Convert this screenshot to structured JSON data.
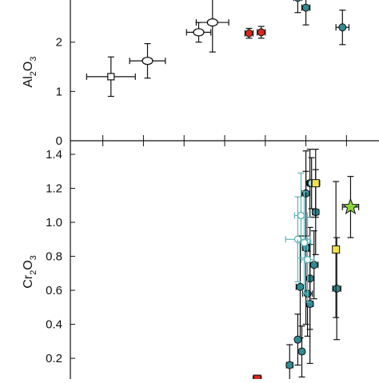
{
  "chart_data": [
    {
      "type": "scatter",
      "ylabel_main": "Al",
      "ylabel_sub": [
        "2",
        "3"
      ],
      "ylabel_mid": "O",
      "ylim": [
        0,
        3.05
      ],
      "yticks": [
        {
          "value": 0,
          "label": "0"
        },
        {
          "value": 1,
          "label": "1"
        },
        {
          "value": 2,
          "label": "2"
        }
      ],
      "series": [
        {
          "marker": "square-open",
          "color": "#ffffff",
          "points": [
            {
              "x": 0.1,
              "y": 1.3,
              "xerr": 0.3,
              "yerr": 0.4
            }
          ]
        },
        {
          "marker": "ellipse-open",
          "color": "#ffffff",
          "points": [
            {
              "x": 0.55,
              "y": 1.62,
              "xerr": 0.22,
              "yerr": 0.35
            },
            {
              "x": 1.18,
              "y": 2.2,
              "xerr": 0.15,
              "yerr": 0.2
            },
            {
              "x": 1.35,
              "y": 2.4,
              "xerr": 0.2,
              "yerr": 0.6
            }
          ]
        },
        {
          "marker": "circle",
          "color": "#d9261c",
          "points": [
            {
              "x": 1.8,
              "y": 2.18,
              "xerr": 0.05,
              "yerr": 0.1
            },
            {
              "x": 1.95,
              "y": 2.2,
              "xerr": 0.05,
              "yerr": 0.12
            }
          ]
        },
        {
          "marker": "circle",
          "color": "#2e8b93",
          "points": [
            {
              "x": 2.4,
              "y": 2.9,
              "xerr": 0.05,
              "yerr": 0.3
            },
            {
              "x": 2.5,
              "y": 2.7,
              "xerr": 0.05,
              "yerr": 0.35
            },
            {
              "x": 2.95,
              "y": 2.3,
              "xerr": 0.08,
              "yerr": 0.35
            }
          ]
        }
      ]
    },
    {
      "type": "scatter",
      "ylabel_main": "Cr",
      "ylabel_sub": [
        "2",
        "3"
      ],
      "ylabel_mid": "O",
      "ylim": [
        0.05,
        1.48
      ],
      "yticks": [
        {
          "value": 0.2,
          "label": "0.2"
        },
        {
          "value": 0.4,
          "label": "0.4"
        },
        {
          "value": 0.6,
          "label": "0.6"
        },
        {
          "value": 0.8,
          "label": "0.8"
        },
        {
          "value": 1.0,
          "label": "1.0"
        },
        {
          "value": 1.2,
          "label": "1.2"
        },
        {
          "value": 1.4,
          "label": "1.4"
        }
      ],
      "series": [
        {
          "marker": "circle",
          "color": "#2e8b93",
          "points": [
            {
              "x": 2.55,
              "y": 1.23,
              "xerr": 0.05,
              "yerr": 0.2
            },
            {
              "x": 2.5,
              "y": 1.17,
              "xerr": 0.05,
              "yerr": 0.25
            },
            {
              "x": 2.62,
              "y": 1.06,
              "xerr": 0.04,
              "yerr": 0.25
            },
            {
              "x": 2.6,
              "y": 0.75,
              "xerr": 0.05,
              "yerr": 0.2
            },
            {
              "x": 2.55,
              "y": 0.67,
              "xerr": 0.05,
              "yerr": 0.3
            },
            {
              "x": 2.5,
              "y": 0.85,
              "xerr": 0.04,
              "yerr": 0.45
            },
            {
              "x": 2.43,
              "y": 0.62,
              "xerr": 0.05,
              "yerr": 0.3
            },
            {
              "x": 2.52,
              "y": 0.58,
              "xerr": 0.06,
              "yerr": 0.25
            },
            {
              "x": 2.88,
              "y": 0.61,
              "xerr": 0.05,
              "yerr": 0.3
            },
            {
              "x": 2.55,
              "y": 0.52,
              "xerr": 0.04,
              "yerr": 0.35
            },
            {
              "x": 2.4,
              "y": 0.31,
              "xerr": 0.03,
              "yerr": 0.15
            },
            {
              "x": 2.45,
              "y": 0.24,
              "xerr": 0.03,
              "yerr": 0.15
            },
            {
              "x": 2.3,
              "y": 0.16,
              "xerr": 0.04,
              "yerr": 0.12
            }
          ]
        },
        {
          "marker": "circle-open",
          "color": "#5fb3b8",
          "points": [
            {
              "x": 2.4,
              "y": 0.9,
              "xerr": 0.15,
              "yerr": 0.25
            },
            {
              "x": 2.44,
              "y": 1.04,
              "xerr": 0.08,
              "yerr": 0.25
            },
            {
              "x": 2.48,
              "y": 0.88,
              "xerr": 0.08,
              "yerr": 0.3
            },
            {
              "x": 2.52,
              "y": 0.78,
              "xerr": 0.08,
              "yerr": 0.25
            }
          ]
        },
        {
          "marker": "circle",
          "color": "#a9dde9",
          "points": [
            {
              "x": 2.57,
              "y": 1.23,
              "xerr": 0.05,
              "yerr": 0.15
            }
          ]
        },
        {
          "marker": "square",
          "color": "#f2e14c",
          "points": [
            {
              "x": 2.62,
              "y": 1.23,
              "xerr": 0.05,
              "yerr": 0.2
            },
            {
              "x": 2.87,
              "y": 0.84,
              "xerr": 0.04,
              "yerr": 0.4
            }
          ]
        },
        {
          "marker": "star",
          "color": "#8cd63a",
          "points": [
            {
              "x": 3.05,
              "y": 1.09,
              "xerr": 0.1,
              "yerr": 0.18
            }
          ]
        },
        {
          "marker": "square",
          "color": "#d9261c",
          "points": [
            {
              "x": 1.9,
              "y": 0.08,
              "xerr": 0.05,
              "yerr": 0.02
            }
          ]
        }
      ]
    }
  ],
  "xlim": [
    -0.4,
    3.4
  ],
  "xticks": [
    0,
    0.5,
    1,
    1.5,
    2,
    2.5,
    3
  ]
}
